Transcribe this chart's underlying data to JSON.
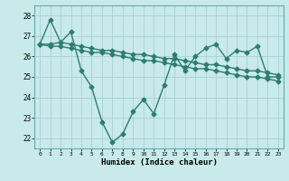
{
  "title": "",
  "xlabel": "Humidex (Indice chaleur)",
  "ylabel": "",
  "bg_color": "#c8eaea",
  "grid_color": "#aad0d0",
  "line_color": "#2e7d6e",
  "marker": "D",
  "markersize": 2.5,
  "linewidth": 1.0,
  "ylim": [
    21.5,
    28.5
  ],
  "xlim": [
    -0.5,
    23.5
  ],
  "yticks": [
    22,
    23,
    24,
    25,
    26,
    27,
    28
  ],
  "xticks": [
    0,
    1,
    2,
    3,
    4,
    5,
    6,
    7,
    8,
    9,
    10,
    11,
    12,
    13,
    14,
    15,
    16,
    17,
    18,
    19,
    20,
    21,
    22,
    23
  ],
  "series1": [
    26.6,
    27.8,
    26.7,
    27.2,
    25.3,
    24.5,
    22.8,
    21.8,
    22.2,
    23.3,
    23.9,
    23.2,
    24.6,
    26.1,
    25.3,
    26.0,
    26.4,
    26.6,
    25.9,
    26.3,
    26.2,
    26.5,
    25.0,
    25.0
  ],
  "series2": [
    26.6,
    26.6,
    26.7,
    26.6,
    26.5,
    26.4,
    26.3,
    26.3,
    26.2,
    26.1,
    26.1,
    26.0,
    25.9,
    25.9,
    25.8,
    25.7,
    25.6,
    25.6,
    25.5,
    25.4,
    25.3,
    25.3,
    25.2,
    25.1
  ],
  "series3": [
    26.6,
    26.5,
    26.5,
    26.4,
    26.3,
    26.2,
    26.2,
    26.1,
    26.0,
    25.9,
    25.8,
    25.8,
    25.7,
    25.6,
    25.5,
    25.4,
    25.4,
    25.3,
    25.2,
    25.1,
    25.0,
    25.0,
    24.9,
    24.8
  ]
}
